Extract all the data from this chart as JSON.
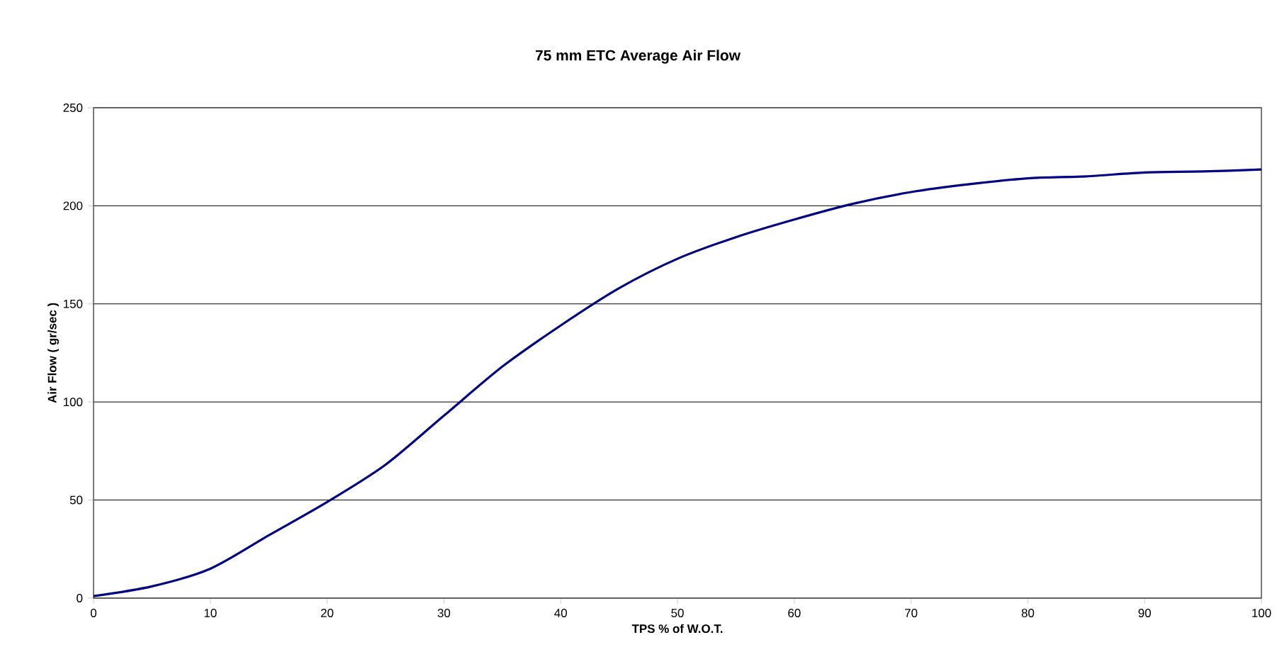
{
  "chart_data": {
    "type": "line",
    "title": "75 mm ETC Average Air Flow",
    "xlabel": "TPS % of W.O.T.",
    "ylabel": "Air Flow  ( gr/sec )",
    "x": [
      0,
      5,
      10,
      15,
      20,
      25,
      30,
      35,
      40,
      45,
      50,
      55,
      60,
      65,
      70,
      75,
      80,
      85,
      90,
      95,
      100
    ],
    "series": [
      {
        "color": "#000080",
        "values": [
          1,
          6,
          15,
          32,
          49,
          68,
          93,
          118,
          139,
          158,
          173,
          184,
          193,
          201,
          207,
          211,
          214,
          215,
          217,
          217.5,
          218.5
        ]
      }
    ],
    "xlim": [
      0,
      100
    ],
    "ylim": [
      0,
      250
    ],
    "xticks": [
      0,
      10,
      20,
      30,
      40,
      50,
      60,
      70,
      80,
      90,
      100
    ],
    "yticks": [
      0,
      50,
      100,
      150,
      200,
      250
    ],
    "grid": "y",
    "marker": "none",
    "line_style": "solid"
  }
}
